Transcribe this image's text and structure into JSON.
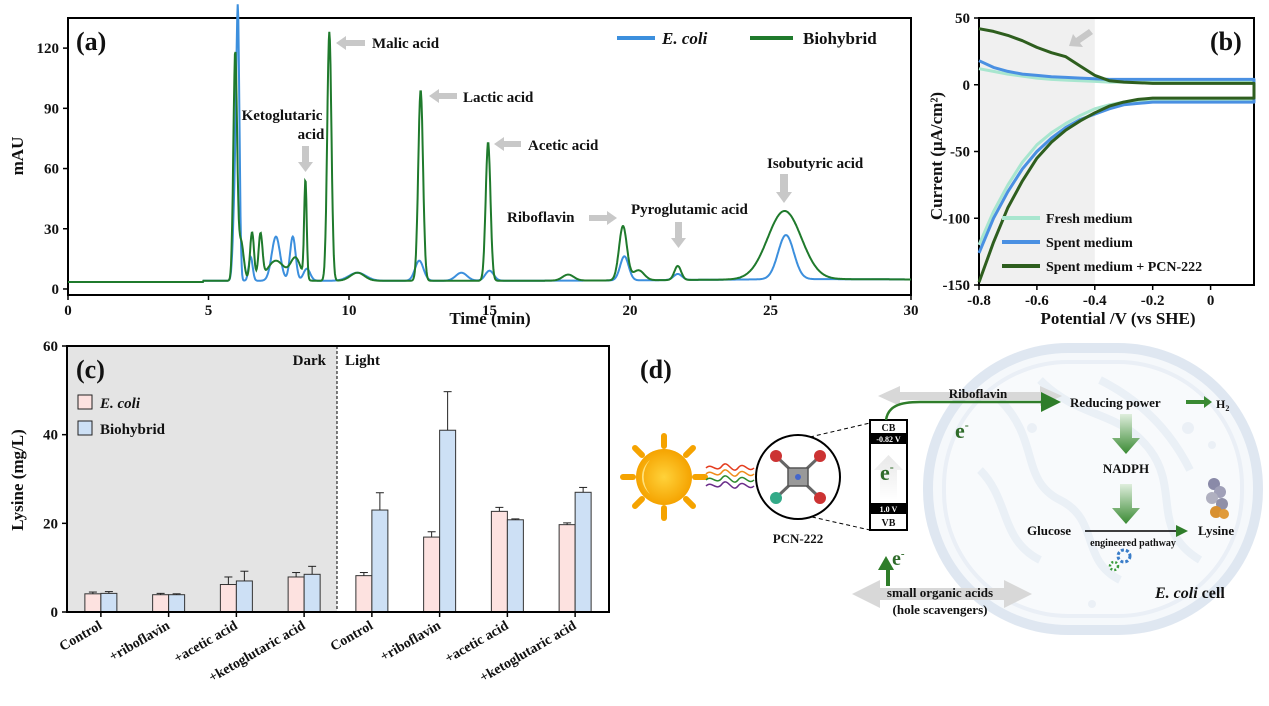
{
  "colors": {
    "ecoli_line": "#3c8fdd",
    "biohybrid_line": "#1f7a2c",
    "fresh_line": "#a8e6cf",
    "spent_line": "#4a90e2",
    "spent_pcn_line": "#2e5e1e",
    "bar_ecoli": "#fde2e0",
    "bar_biohybrid": "#cde0f5",
    "dark_region": "#e4e4e4",
    "arrow_gray": "#c8c8c8",
    "green_arrow": "#2f7d2a"
  },
  "chart_data": [
    {
      "panel_label": "(a)",
      "type": "line",
      "xlabel": "Time (min)",
      "ylabel": "mAU",
      "xlim": [
        0,
        30
      ],
      "ylim": [
        -3,
        135
      ],
      "xticks": [
        0,
        5,
        10,
        15,
        20,
        25,
        30
      ],
      "yticks": [
        0,
        30,
        60,
        90,
        120
      ],
      "legend_placement": "top-right",
      "series": [
        {
          "name": "E. coli",
          "baseline": 3.5,
          "peaks": [
            [
              5.95,
              45,
              0.07
            ],
            [
              6.05,
              120,
              0.055
            ],
            [
              6.5,
              12,
              0.07
            ],
            [
              7.4,
              22,
              0.15
            ],
            [
              8.0,
              22,
              0.1
            ],
            [
              8.5,
              6,
              0.12
            ],
            [
              10.3,
              4,
              0.3
            ],
            [
              12.5,
              10,
              0.15
            ],
            [
              14.0,
              4,
              0.2
            ],
            [
              15.0,
              5,
              0.15
            ],
            [
              19.8,
              12,
              0.15
            ],
            [
              21.7,
              3,
              0.15
            ],
            [
              25.55,
              22,
              0.28
            ]
          ]
        },
        {
          "name": "Biohybrid",
          "baseline": 3.5,
          "peaks": [
            [
              5.95,
              112,
              0.065
            ],
            [
              6.15,
              20,
              0.1
            ],
            [
              6.55,
              24,
              0.07
            ],
            [
              6.85,
              22,
              0.07
            ],
            [
              7.4,
              10,
              0.3
            ],
            [
              8.1,
              11,
              0.18
            ],
            [
              8.45,
              49,
              0.045
            ],
            [
              9.3,
              124,
              0.075
            ],
            [
              10.3,
              4,
              0.25
            ],
            [
              12.55,
              95,
              0.085
            ],
            [
              14.95,
              69,
              0.085
            ],
            [
              19.75,
              27,
              0.14
            ],
            [
              20.3,
              5,
              0.2
            ],
            [
              21.7,
              7,
              0.12
            ],
            [
              17.8,
              3,
              0.2
            ],
            [
              25.5,
              34,
              0.6
            ]
          ]
        }
      ],
      "annotations": [
        "Malic acid",
        "Ketoglutaric",
        "acid",
        "Lactic acid",
        "Acetic acid",
        "Riboflavin",
        "Pyroglutamic acid",
        "Isobutyric acid"
      ]
    },
    {
      "panel_label": "(b)",
      "type": "line",
      "xlabel": "Potential /V (vs SHE)",
      "ylabel": "Current (μA/cm²)",
      "xlim": [
        -0.8,
        0.15
      ],
      "ylim": [
        -150,
        50
      ],
      "xticks": [
        -0.8,
        -0.6,
        -0.4,
        -0.2,
        0
      ],
      "xtick_labels": [
        "-0.8",
        "-0.6",
        "-0.4",
        "-0.2",
        "0"
      ],
      "yticks": [
        50,
        0,
        -50,
        -100,
        -150
      ],
      "legend_placement": "bottom-right",
      "series": [
        {
          "name": "Fresh medium",
          "x": [
            -0.8,
            -0.75,
            -0.7,
            -0.65,
            -0.6,
            -0.55,
            -0.5,
            -0.45,
            -0.4,
            -0.35,
            -0.3,
            -0.25,
            -0.2,
            -0.1,
            0,
            0.15
          ],
          "upper": [
            12,
            10,
            8,
            6.5,
            5,
            4,
            3.5,
            3,
            2.5,
            2,
            2,
            2,
            2,
            2,
            2,
            2
          ],
          "lower": [
            -120,
            -95,
            -75,
            -58,
            -45,
            -36,
            -29,
            -23,
            -18,
            -15,
            -13,
            -12,
            -11,
            -11,
            -11,
            -11
          ]
        },
        {
          "name": "Spent medium",
          "x": [
            -0.8,
            -0.75,
            -0.7,
            -0.65,
            -0.6,
            -0.55,
            -0.5,
            -0.45,
            -0.4,
            -0.35,
            -0.3,
            -0.25,
            -0.2,
            -0.1,
            0,
            0.15
          ],
          "upper": [
            18,
            13,
            10,
            8,
            7,
            6,
            5.5,
            5,
            4.5,
            4,
            4,
            4,
            4,
            4,
            4,
            4
          ],
          "lower": [
            -126,
            -100,
            -80,
            -63,
            -50,
            -40,
            -32,
            -26,
            -22,
            -18,
            -15,
            -14,
            -13,
            -13,
            -13,
            -13
          ]
        },
        {
          "name": "Spent medium + PCN-222",
          "x": [
            -0.8,
            -0.75,
            -0.7,
            -0.65,
            -0.6,
            -0.55,
            -0.5,
            -0.45,
            -0.4,
            -0.35,
            -0.3,
            -0.25,
            -0.2,
            -0.1,
            0,
            0.15
          ],
          "upper": [
            42,
            40,
            37,
            33,
            28,
            24,
            21,
            14,
            7,
            3,
            2,
            1.5,
            1,
            1,
            1,
            1
          ],
          "lower": [
            -148,
            -118,
            -92,
            -72,
            -55,
            -43,
            -34,
            -27,
            -21,
            -16,
            -13,
            -11,
            -10,
            -10,
            -10,
            -10
          ]
        }
      ]
    },
    {
      "panel_label": "(c)",
      "type": "bar",
      "ylabel": "Lysine (mg/L)",
      "ylim": [
        0,
        60
      ],
      "yticks": [
        0,
        20,
        40,
        60
      ],
      "region_labels": [
        "Dark",
        "Light"
      ],
      "legend_placement": "top-left",
      "categories": [
        "Control",
        "+riboflavin",
        "+acetic acid",
        "+ketoglutaric acid",
        "Control",
        "+riboflavin",
        "+acetic acid",
        "+ketoglutaric acid"
      ],
      "series": [
        {
          "name": "E. coli",
          "values": [
            4.1,
            3.9,
            6.2,
            7.9,
            8.2,
            16.9,
            22.7,
            19.7
          ],
          "errors": [
            0.4,
            0.3,
            1.7,
            1.0,
            0.7,
            1.2,
            0.9,
            0.4
          ]
        },
        {
          "name": "Biohybrid",
          "values": [
            4.2,
            3.9,
            7.0,
            8.5,
            23.0,
            41.0,
            20.8,
            27.0
          ],
          "errors": [
            0.4,
            0.2,
            2.2,
            1.8,
            3.9,
            8.7,
            0.2,
            1.1
          ]
        }
      ]
    }
  ],
  "diagram": {
    "panel_label": "(d)",
    "riboflavin": "Riboflavin",
    "e": "e",
    "minus": "-",
    "reducing_power": "Reducing power",
    "h2": "H",
    "h2_sub": "2",
    "nadph": "NADPH",
    "cb": "CB",
    "cb_potential": "-0.82 V",
    "vb": "VB",
    "vb_potential": "1.0 V",
    "pcn": "PCN-222",
    "glucose": "Glucose",
    "lysine": "Lysine",
    "pathway": "engineered pathway",
    "small_acids_1": "small organic acids",
    "small_acids_2": "(hole scavengers)",
    "cell_italic": "E. coli",
    "cell_word": " cell"
  }
}
